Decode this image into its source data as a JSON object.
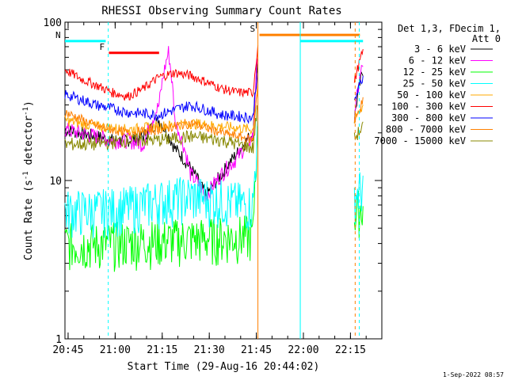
{
  "chart_data": {
    "type": "line",
    "title": "RHESSI Observing Summary Count Rates",
    "xlabel": "Start Time (29-Aug-16 20:44:02)",
    "ylabel_main": "Count Rate (s",
    "ylabel_sup1": "-1",
    "ylabel_mid": " detector",
    "ylabel_sup2": "-1",
    "ylabel_end": ")",
    "y_scale": "log",
    "ylim": [
      1,
      100
    ],
    "y_ticks": [
      "1",
      "10",
      "100"
    ],
    "x_range_min": [
      0,
      101
    ],
    "x_ticks": [
      {
        "t": 1,
        "label": "20:45"
      },
      {
        "t": 16,
        "label": "21:00"
      },
      {
        "t": 31,
        "label": "21:15"
      },
      {
        "t": 46,
        "label": "21:30"
      },
      {
        "t": 61,
        "label": "21:45"
      },
      {
        "t": 76,
        "label": "22:00"
      },
      {
        "t": 91,
        "label": "22:15"
      }
    ],
    "legend_placement": "top-right, outside plot",
    "legend_header": [
      "Det 1,3, FDecim 1,",
      "Att 0"
    ],
    "series": [
      {
        "name": "3 - 6 keV",
        "color": "#000000",
        "x": [
          0,
          5,
          10,
          15,
          20,
          25,
          30,
          35,
          40,
          45,
          50,
          55,
          60,
          61.5,
          90,
          92,
          95
        ],
        "y": [
          21,
          20,
          19,
          18,
          18,
          19,
          24,
          16,
          12,
          8,
          11,
          15,
          20,
          60,
          null,
          22,
          50
        ]
      },
      {
        "name": "6 - 12 keV",
        "color": "#ff00ff",
        "x": [
          0,
          5,
          10,
          15,
          20,
          25,
          30,
          33,
          35,
          40,
          45,
          50,
          55,
          60,
          61.5,
          90,
          92,
          95
        ],
        "y": [
          21,
          20,
          19,
          18,
          18,
          17,
          30,
          65,
          24,
          11,
          8,
          11,
          14,
          19,
          60,
          null,
          22,
          55
        ]
      },
      {
        "name": "12 - 25 keV",
        "color": "#00ff00",
        "x": [
          0,
          10,
          20,
          30,
          40,
          50,
          60,
          61.5,
          90,
          92,
          95
        ],
        "y": [
          4,
          4,
          4.1,
          4.2,
          4.3,
          4.4,
          4.5,
          20,
          null,
          6,
          7
        ]
      },
      {
        "name": "25 - 50 keV",
        "color": "#00ffff",
        "x": [
          0,
          10,
          20,
          30,
          40,
          50,
          60,
          61.5,
          90,
          92,
          95
        ],
        "y": [
          6.5,
          6.5,
          6.8,
          7.5,
          8,
          7.5,
          7,
          20,
          null,
          8,
          9
        ]
      },
      {
        "name": "50 - 100 keV",
        "color": "#ffaa00",
        "x": [
          0,
          10,
          20,
          30,
          40,
          50,
          60,
          61.5,
          90,
          92,
          95
        ],
        "y": [
          24,
          22,
          21,
          22,
          23,
          22,
          21,
          40,
          null,
          23,
          30
        ]
      },
      {
        "name": "100 - 300 keV",
        "color": "#ff0000",
        "x": [
          0,
          5,
          10,
          15,
          20,
          25,
          30,
          35,
          40,
          45,
          50,
          55,
          60,
          61.5,
          90,
          92,
          95
        ],
        "y": [
          50,
          44,
          40,
          36,
          34,
          38,
          45,
          48,
          46,
          42,
          38,
          36,
          36,
          70,
          null,
          40,
          65
        ]
      },
      {
        "name": "300 - 800 keV",
        "color": "#0000ff",
        "x": [
          0,
          10,
          20,
          30,
          40,
          50,
          60,
          61.5,
          90,
          92,
          95
        ],
        "y": [
          35,
          30,
          27,
          26,
          30,
          26,
          25,
          50,
          null,
          30,
          45
        ]
      },
      {
        "name": "800 - 7000 keV",
        "color": "#ff8000",
        "x": [
          0,
          10,
          20,
          30,
          40,
          50,
          60,
          61.5,
          90,
          92,
          95
        ],
        "y": [
          27,
          22,
          20,
          21,
          23,
          20,
          18,
          40,
          null,
          22,
          32
        ]
      },
      {
        "name": "7000 - 15000 keV",
        "color": "#888800",
        "x": [
          0,
          10,
          20,
          30,
          40,
          50,
          60,
          61.5,
          90,
          92,
          95
        ],
        "y": [
          17,
          17,
          18,
          18,
          19,
          18,
          16,
          30,
          null,
          18,
          22
        ]
      }
    ],
    "annotations": [
      {
        "label": "N",
        "color": "#00ffff",
        "x": [
          0,
          13
        ],
        "y": 76,
        "dashed_marker_x": 13.8
      },
      {
        "label": "F",
        "color": "#ff0000",
        "x": [
          14,
          30
        ],
        "y": 64
      },
      {
        "label": "S",
        "color": "#ff8000",
        "x": [
          62,
          94
        ],
        "y": 83
      },
      {
        "label": "",
        "color": "#00ffff",
        "x": [
          75,
          95
        ],
        "y": 76
      },
      {
        "label": "",
        "color": "#00ffff",
        "vertical_x": 75
      }
    ],
    "vertical_markers": [
      {
        "x": 61.5,
        "color": "#ff8000",
        "style": "solid"
      },
      {
        "x": 75,
        "color": "#00ffff",
        "style": "solid"
      },
      {
        "x": 92.5,
        "color": "#ff8000",
        "style": "dashed"
      },
      {
        "x": 93.8,
        "color": "#00ffff",
        "style": "dashed"
      }
    ]
  },
  "footer_stamp": "1-Sep-2022 08:57"
}
